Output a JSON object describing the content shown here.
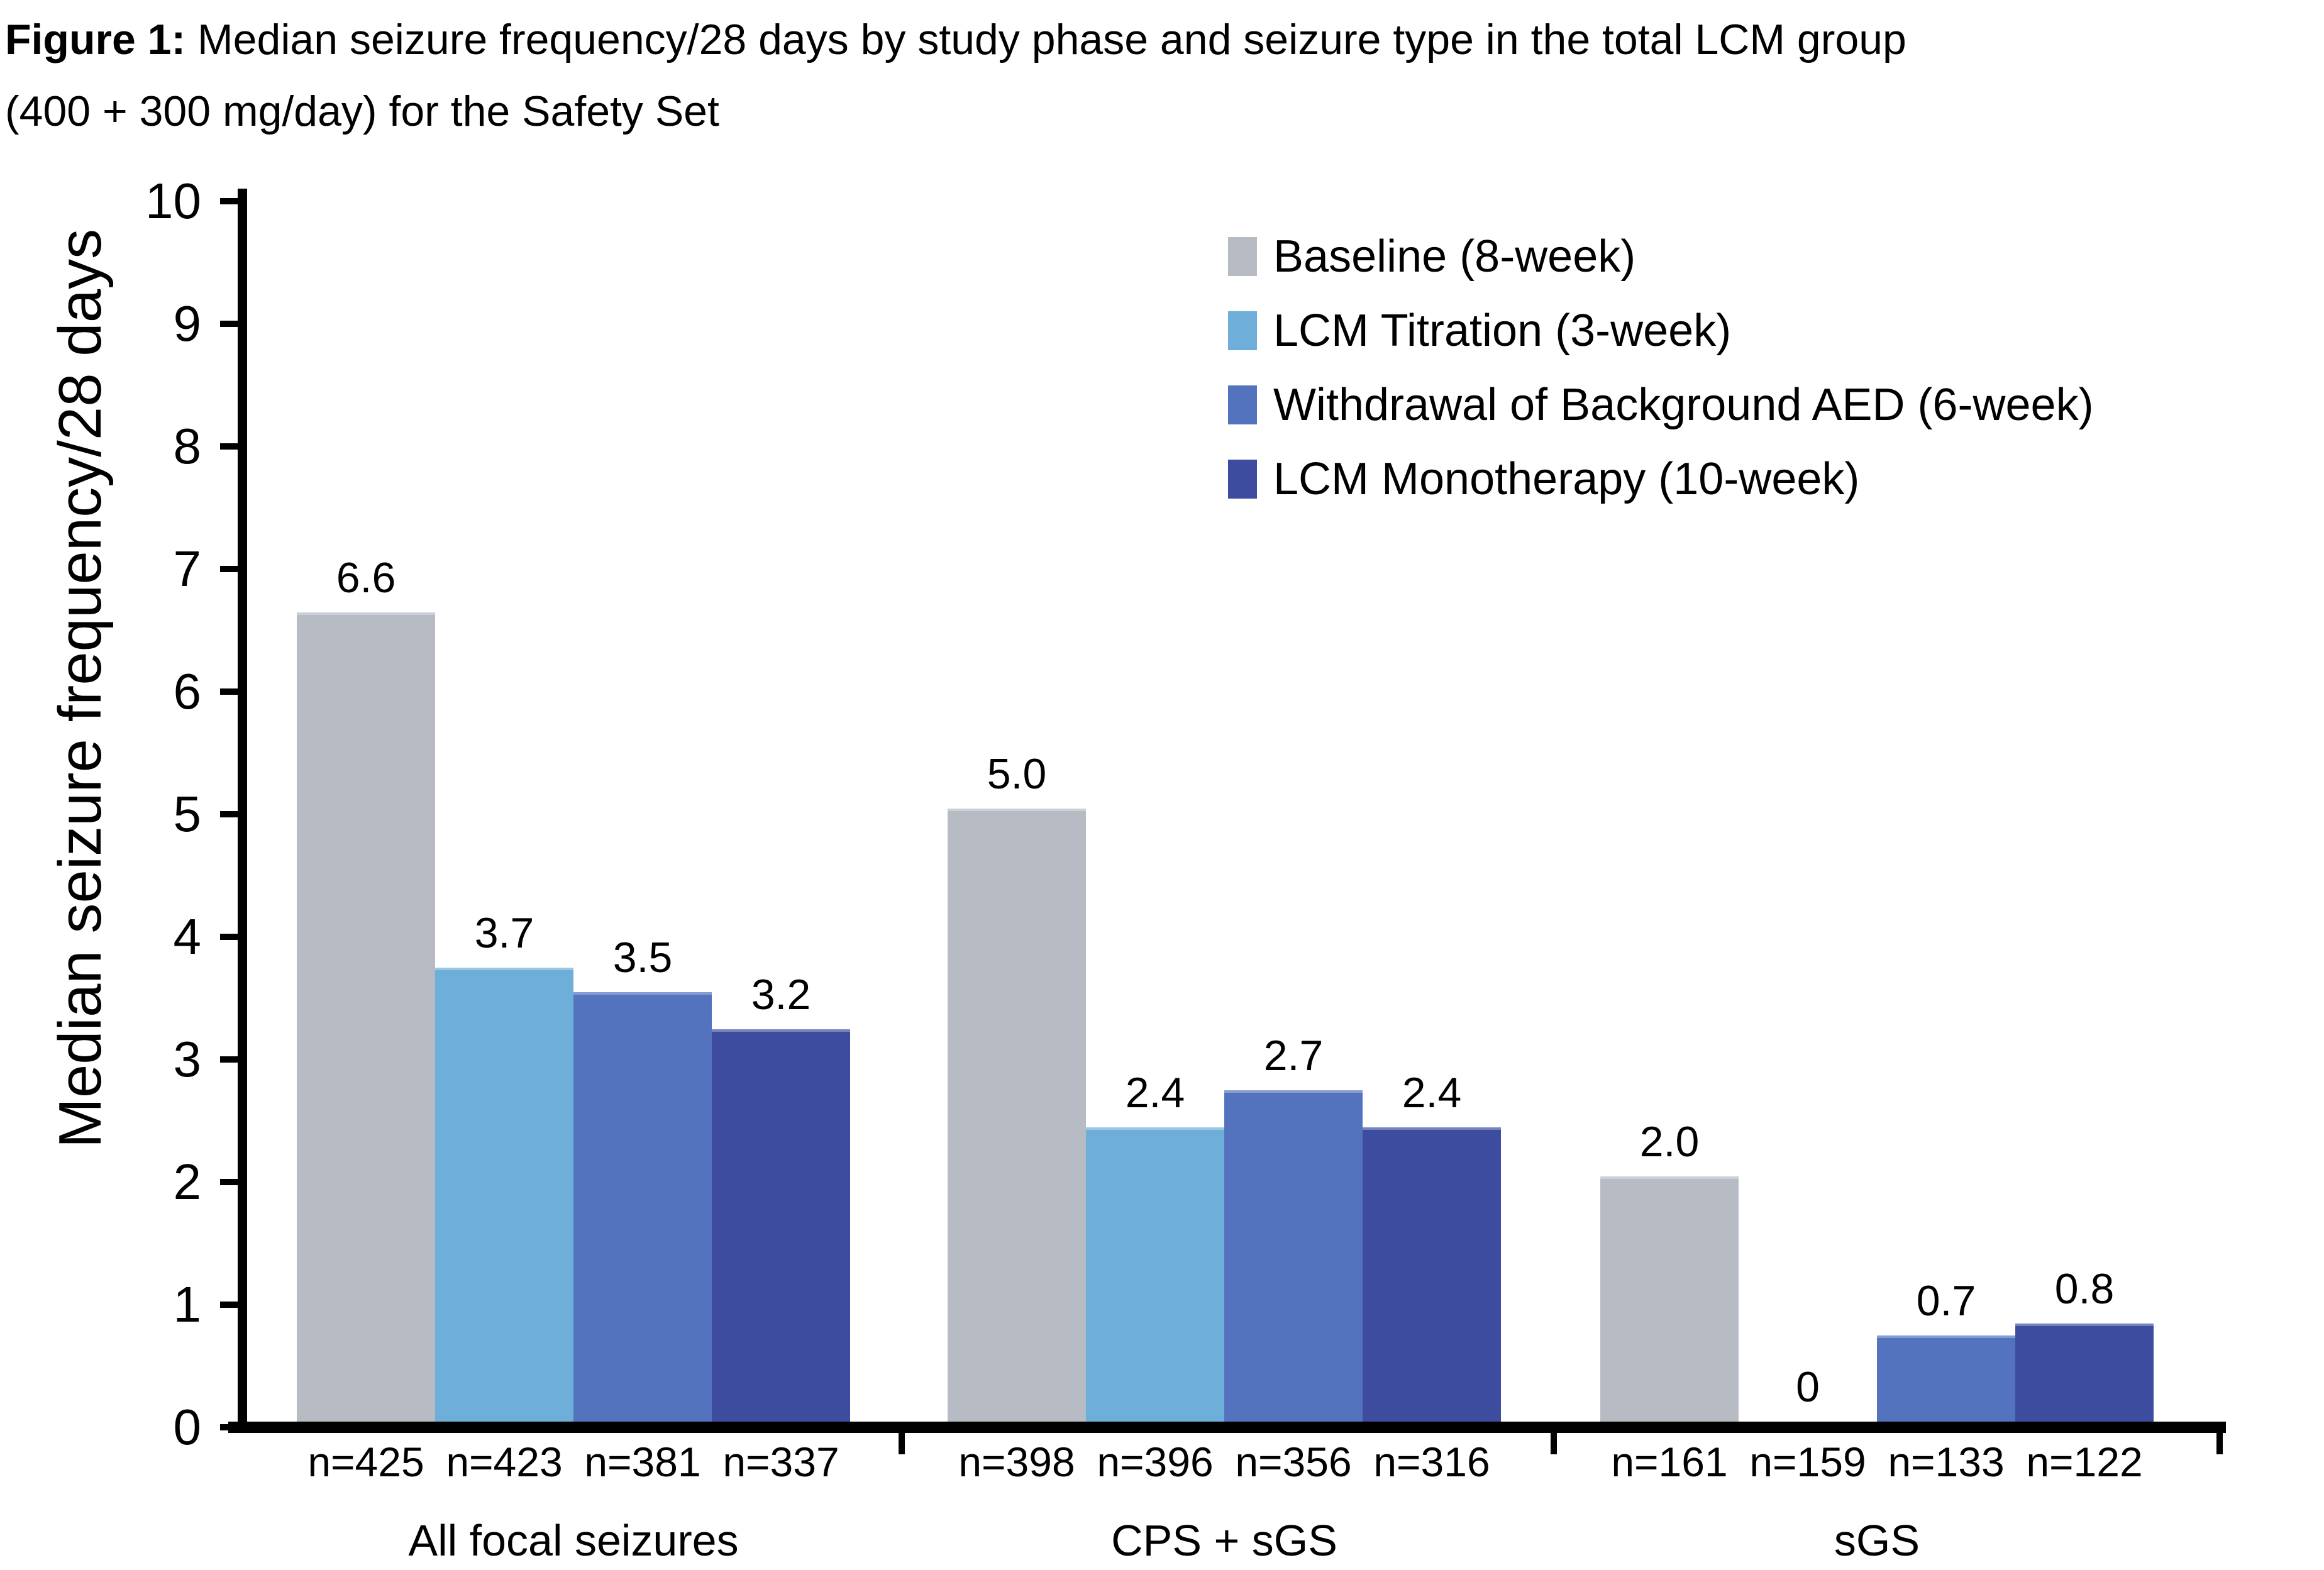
{
  "figure": {
    "title_prefix": "Figure 1:",
    "title_line1_rest": " Median seizure frequency/28 days by study phase and seizure type in the total LCM group",
    "title_line2": "(400 + 300 mg/day) for the Safety Set"
  },
  "chart_data": {
    "type": "bar",
    "title": "Figure 1: Median seizure frequency/28 days by study phase and seizure type in the total LCM group (400 + 300 mg/day) for the Safety Set",
    "xlabel": "",
    "ylabel": "Median seizure frequency/28 days",
    "ylim": [
      0,
      10
    ],
    "ytick_step": 1,
    "grid": false,
    "legend_position": "top-right",
    "axis_color": "#000000",
    "categories": [
      "All focal seizures",
      "CPS + sGS",
      "sGS"
    ],
    "series": [
      {
        "name": "Baseline (8-week)",
        "color": "#b7bbc3",
        "values": [
          6.6,
          5.0,
          2.0
        ],
        "value_labels": [
          "6.6",
          "5.0",
          "2.0"
        ],
        "n_labels": [
          "n=425",
          "n=398",
          "n=161"
        ]
      },
      {
        "name": "LCM Titration (3-week)",
        "color": "#6dafd8",
        "values": [
          3.7,
          2.4,
          0
        ],
        "value_labels": [
          "3.7",
          "2.4",
          "0"
        ],
        "n_labels": [
          "n=423",
          "n=396",
          "n=159"
        ]
      },
      {
        "name": "Withdrawal of Background AED (6-week)",
        "color": "#5373be",
        "values": [
          3.5,
          2.7,
          0.7
        ],
        "value_labels": [
          "3.5",
          "2.7",
          "0.7"
        ],
        "n_labels": [
          "n=381",
          "n=356",
          "n=133"
        ]
      },
      {
        "name": "LCM Monotherapy (10-week)",
        "color": "#3e4c9f",
        "values": [
          3.2,
          2.4,
          0.8
        ],
        "value_labels": [
          "3.2",
          "2.4",
          "0.8"
        ],
        "n_labels": [
          "n=337",
          "n=316",
          "n=122"
        ]
      }
    ]
  }
}
